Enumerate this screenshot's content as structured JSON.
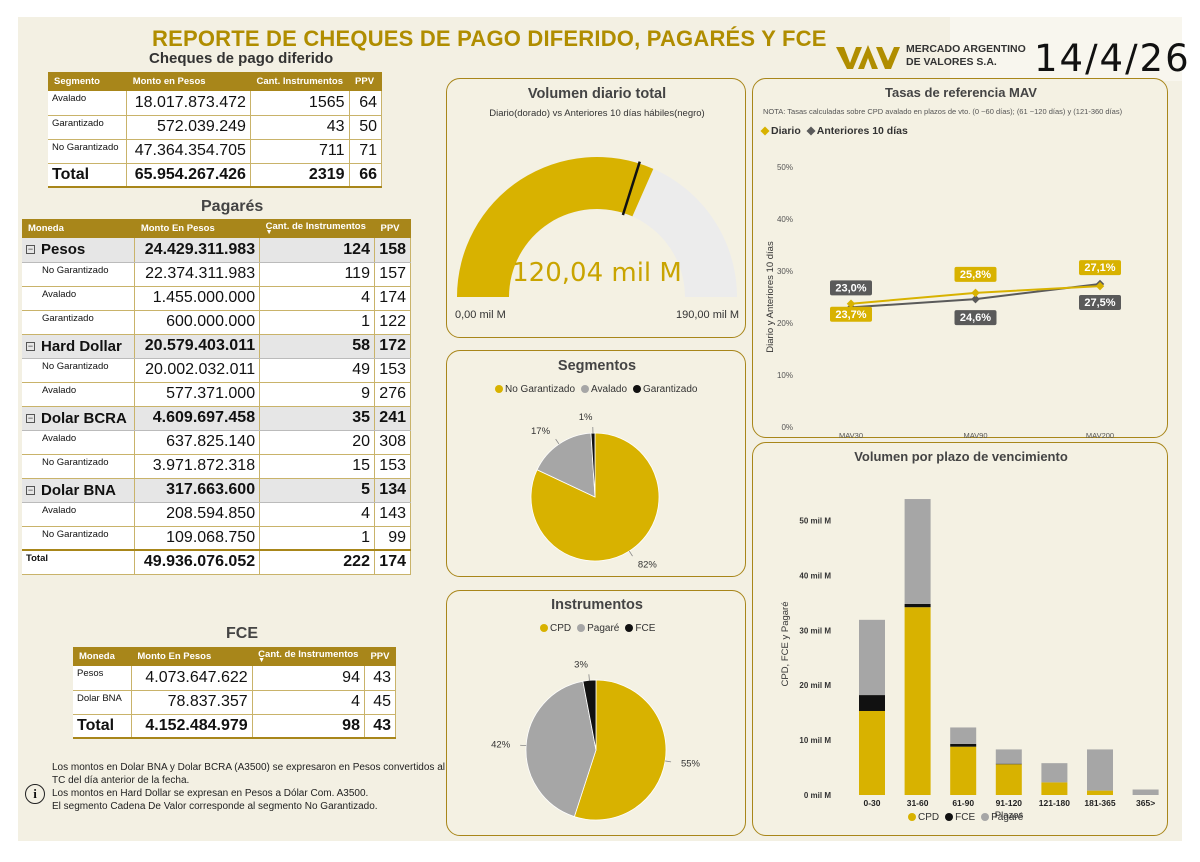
{
  "header": {
    "title": "REPORTE DE CHEQUES DE PAGO DIFERIDO, PAGARÉS Y FCE",
    "subtitle_cheques": "Cheques de pago diferido",
    "logo_text_line1": "MERCADO ARGENTINO",
    "logo_text_line2": "DE VALORES S.A.",
    "date": "14/4/26"
  },
  "cheques_table": {
    "headers": [
      "Segmento",
      "Monto en Pesos",
      "Cant. Instrumentos",
      "PPV"
    ],
    "rows": [
      {
        "label": "Avalado",
        "monto": "18.017.873.472",
        "cant": "1565",
        "ppv": "64"
      },
      {
        "label": "Garantizado",
        "monto": "572.039.249",
        "cant": "43",
        "ppv": "50"
      },
      {
        "label": "No Garantizado",
        "monto": "47.364.354.705",
        "cant": "711",
        "ppv": "71"
      }
    ],
    "total": {
      "label": "Total",
      "monto": "65.954.267.426",
      "cant": "2319",
      "ppv": "66"
    }
  },
  "pagares_table": {
    "title": "Pagarés",
    "headers": [
      "Moneda",
      "Monto En Pesos",
      "Cant. de Instrumentos",
      "PPV"
    ],
    "groups": [
      {
        "label": "Pesos",
        "monto": "24.429.311.983",
        "cant": "124",
        "ppv": "158",
        "rows": [
          {
            "label": "No Garantizado",
            "monto": "22.374.311.983",
            "cant": "119",
            "ppv": "157"
          },
          {
            "label": "Avalado",
            "monto": "1.455.000.000",
            "cant": "4",
            "ppv": "174"
          },
          {
            "label": "Garantizado",
            "monto": "600.000.000",
            "cant": "1",
            "ppv": "122"
          }
        ]
      },
      {
        "label": "Hard Dollar",
        "monto": "20.579.403.011",
        "cant": "58",
        "ppv": "172",
        "rows": [
          {
            "label": "No Garantizado",
            "monto": "20.002.032.011",
            "cant": "49",
            "ppv": "153"
          },
          {
            "label": "Avalado",
            "monto": "577.371.000",
            "cant": "9",
            "ppv": "276"
          }
        ]
      },
      {
        "label": "Dolar BCRA",
        "monto": "4.609.697.458",
        "cant": "35",
        "ppv": "241",
        "rows": [
          {
            "label": "Avalado",
            "monto": "637.825.140",
            "cant": "20",
            "ppv": "308"
          },
          {
            "label": "No Garantizado",
            "monto": "3.971.872.318",
            "cant": "15",
            "ppv": "153"
          }
        ]
      },
      {
        "label": "Dolar BNA",
        "monto": "317.663.600",
        "cant": "5",
        "ppv": "134",
        "rows": [
          {
            "label": "Avalado",
            "monto": "208.594.850",
            "cant": "4",
            "ppv": "143"
          },
          {
            "label": "No Garantizado",
            "monto": "109.068.750",
            "cant": "1",
            "ppv": "99"
          }
        ]
      }
    ],
    "total": {
      "label": "Total",
      "monto": "49.936.076.052",
      "cant": "222",
      "ppv": "174"
    }
  },
  "fce_table": {
    "title": "FCE",
    "headers": [
      "Moneda",
      "Monto En Pesos",
      "Cant. de Instrumentos",
      "PPV"
    ],
    "rows": [
      {
        "label": "Pesos",
        "monto": "4.073.647.622",
        "cant": "94",
        "ppv": "43"
      },
      {
        "label": "Dolar BNA",
        "monto": "78.837.357",
        "cant": "4",
        "ppv": "45"
      }
    ],
    "total": {
      "label": "Total",
      "monto": "4.152.484.979",
      "cant": "98",
      "ppv": "43"
    }
  },
  "notes": {
    "info_icon": "i",
    "line1": "Los montos en Dolar BNA y Dolar BCRA (A3500) se expresaron en Pesos convertidos al TC del día anterior de la fecha.",
    "line2": "Los montos en Hard Dollar se expresan en Pesos a Dólar Com. A3500.",
    "line3": "El segmento Cadena De Valor corresponde al segmento No Garantizado."
  },
  "colors": {
    "gold": "#d8b200",
    "gray": "#a6a6a6",
    "black": "#111111",
    "dark_gray": "#5a5a5a",
    "header_gold": "#a8861a"
  },
  "chart_data": [
    {
      "type": "gauge",
      "title": "Volumen diario total",
      "subtitle": "Diario(dorado) vs Anteriores 10 días hábiles(negro)",
      "value": 120.04,
      "value_label": "120,04 mil M",
      "reference": 113.5,
      "min": 0,
      "max": 190,
      "min_label": "0,00 mil M",
      "max_label": "190,00 mil M"
    },
    {
      "type": "pie",
      "title": "Segmentos",
      "labels": [
        "No Garantizado",
        "Avalado",
        "Garantizado"
      ],
      "values": [
        82,
        17,
        1
      ],
      "value_labels": [
        "82%",
        "17%",
        "1%"
      ],
      "colors": [
        "#d8b200",
        "#a6a6a6",
        "#111111"
      ]
    },
    {
      "type": "pie",
      "title": "Instrumentos",
      "labels": [
        "CPD",
        "Pagaré",
        "FCE"
      ],
      "values": [
        55,
        42,
        3
      ],
      "value_labels": [
        "55%",
        "42%",
        "3%"
      ],
      "colors": [
        "#d8b200",
        "#a6a6a6",
        "#111111"
      ]
    },
    {
      "type": "line",
      "title": "Tasas de referencia MAV",
      "note": "NOTA: Tasas calculadas sobre CPD avalado en plazos de vto. (0 ~60 días); (61 ~120 días) y (121-360 días)",
      "categories": [
        "MAV30",
        "MAV90",
        "MAV200"
      ],
      "ylabel": "Diario y Anteriores 10 días",
      "ylim": [
        0,
        50
      ],
      "yticks": [
        "0%",
        "10%",
        "20%",
        "30%",
        "40%",
        "50%"
      ],
      "series": [
        {
          "name": "Diario",
          "values": [
            23.7,
            25.8,
            27.1
          ],
          "labels": [
            "23,7%",
            "25,8%",
            "27,1%"
          ],
          "color": "#d8b200"
        },
        {
          "name": "Anteriores 10 días",
          "values": [
            23.0,
            24.6,
            27.5
          ],
          "labels": [
            "23,0%",
            "24,6%",
            "27,5%"
          ],
          "color": "#5a5a5a"
        }
      ]
    },
    {
      "type": "bar",
      "stacked": true,
      "title": "Volumen por plazo de vencimiento",
      "xlabel": "Plazos",
      "ylabel": "CPD, FCE y Pagaré",
      "categories": [
        "0-30",
        "31-60",
        "61-90",
        "91-120",
        "121-180",
        "181-365",
        "365>"
      ],
      "ylim": [
        0,
        55
      ],
      "yticks": [
        "0 mil M",
        "10 mil M",
        "20 mil M",
        "30 mil M",
        "40 mil M",
        "50 mil M"
      ],
      "series": [
        {
          "name": "CPD",
          "values": [
            15.3,
            34.2,
            8.8,
            5.6,
            2.3,
            0.8,
            0.0
          ],
          "color": "#d8b200"
        },
        {
          "name": "FCE",
          "values": [
            2.9,
            0.6,
            0.5,
            0.1,
            0.0,
            0.0,
            0.0
          ],
          "color": "#111111"
        },
        {
          "name": "Pagaré",
          "values": [
            13.7,
            19.1,
            3.0,
            2.6,
            3.5,
            7.5,
            1.0
          ],
          "color": "#a6a6a6"
        }
      ]
    }
  ]
}
